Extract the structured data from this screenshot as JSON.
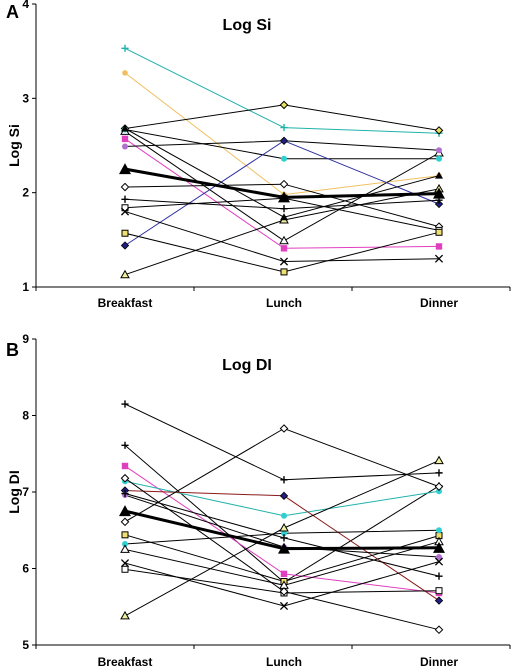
{
  "chart_data": [
    {
      "type": "line",
      "panel_label": "A",
      "title": "Log Si",
      "ylabel": "Log Si",
      "xlabel": "",
      "categories": [
        "Breakfast",
        "Lunch",
        "Dinner"
      ],
      "ylim": [
        1,
        4
      ],
      "yticks": [
        "1",
        "2",
        "3",
        "4"
      ],
      "series": [
        {
          "values": [
            3.53,
            2.69,
            2.63
          ],
          "color": "#20b2aa",
          "marker": "plus"
        },
        {
          "values": [
            3.27,
            1.98,
            2.18
          ],
          "color": "#f0c060",
          "marker": "dot"
        },
        {
          "values": [
            2.68,
            2.93,
            2.66
          ],
          "color": "#000000",
          "marker": "diamond-olive"
        },
        {
          "values": [
            2.65,
            1.49,
            2.42
          ],
          "color": "#000000",
          "marker": "triangle-open"
        },
        {
          "values": [
            2.57,
            1.41,
            1.43
          ],
          "color": "#e040c0",
          "marker": "square-filled"
        },
        {
          "values": [
            2.49,
            2.55,
            2.45
          ],
          "color": "#000000",
          "marker": "dot-violet"
        },
        {
          "values": [
            2.67,
            2.36,
            2.36
          ],
          "color": "#000000",
          "marker": "dot-cyan"
        },
        {
          "values": [
            2.25,
            1.95,
            1.99
          ],
          "color": "#000000",
          "marker": "triangle-filled",
          "bold": true
        },
        {
          "values": [
            2.06,
            2.09,
            1.64
          ],
          "color": "#000000",
          "marker": "diamond-open"
        },
        {
          "values": [
            1.44,
            2.55,
            1.88
          ],
          "color": "#3030a0",
          "marker": "diamond-filled"
        },
        {
          "values": [
            1.93,
            1.83,
            1.92
          ],
          "color": "#000000",
          "marker": "plus"
        },
        {
          "values": [
            1.84,
            1.94,
            1.6
          ],
          "color": "#000000",
          "marker": "square-open"
        },
        {
          "values": [
            1.8,
            1.27,
            1.3
          ],
          "color": "#000000",
          "marker": "cross"
        },
        {
          "values": [
            1.57,
            1.16,
            1.58
          ],
          "color": "#000000",
          "marker": "square-olive"
        },
        {
          "values": [
            1.13,
            1.71,
            2.04
          ],
          "color": "#000000",
          "marker": "triangle-olive"
        },
        {
          "values": [
            2.68,
            1.74,
            2.18
          ],
          "color": "#000000",
          "marker": "triangle-filled-small"
        }
      ]
    },
    {
      "type": "line",
      "panel_label": "B",
      "title": "Log DI",
      "ylabel": "Log DI",
      "xlabel": "",
      "categories": [
        "Breakfast",
        "Lunch",
        "Dinner"
      ],
      "ylim": [
        5,
        9
      ],
      "yticks": [
        "5",
        "6",
        "7",
        "8",
        "9"
      ],
      "series": [
        {
          "values": [
            8.15,
            7.16,
            7.25
          ],
          "color": "#000000",
          "marker": "plus"
        },
        {
          "values": [
            7.61,
            5.82,
            7.08
          ],
          "color": "#000000",
          "marker": "plus"
        },
        {
          "values": [
            7.34,
            5.93,
            5.68
          ],
          "color": "#e040c0",
          "marker": "square-filled"
        },
        {
          "values": [
            7.14,
            6.69,
            7.01
          ],
          "color": "#20b2aa",
          "marker": "dot-cyan"
        },
        {
          "values": [
            7.02,
            6.95,
            5.58
          ],
          "color": "#8b1a1a",
          "marker": "diamond-filled"
        },
        {
          "values": [
            6.96,
            6.28,
            6.15
          ],
          "color": "#000000",
          "marker": "dot-violet"
        },
        {
          "values": [
            6.75,
            6.26,
            6.27
          ],
          "color": "#000000",
          "marker": "triangle-filled",
          "bold": true
        },
        {
          "values": [
            6.61,
            7.83,
            7.07
          ],
          "color": "#000000",
          "marker": "diamond-open"
        },
        {
          "values": [
            6.44,
            5.83,
            6.43
          ],
          "color": "#000000",
          "marker": "square-olive"
        },
        {
          "values": [
            6.32,
            6.46,
            6.5
          ],
          "color": "#000000",
          "marker": "dot-cyan"
        },
        {
          "values": [
            6.25,
            5.78,
            6.35
          ],
          "color": "#000000",
          "marker": "triangle-open"
        },
        {
          "values": [
            6.07,
            5.51,
            6.09
          ],
          "color": "#000000",
          "marker": "cross"
        },
        {
          "values": [
            5.99,
            5.68,
            5.71
          ],
          "color": "#000000",
          "marker": "square-open"
        },
        {
          "values": [
            5.38,
            6.53,
            7.41
          ],
          "color": "#000000",
          "marker": "triangle-olive"
        },
        {
          "values": [
            7.18,
            5.7,
            5.2
          ],
          "color": "#000000",
          "marker": "diamond-open"
        },
        {
          "values": [
            6.98,
            6.4,
            5.9
          ],
          "color": "#000000",
          "marker": "plus"
        }
      ]
    }
  ]
}
